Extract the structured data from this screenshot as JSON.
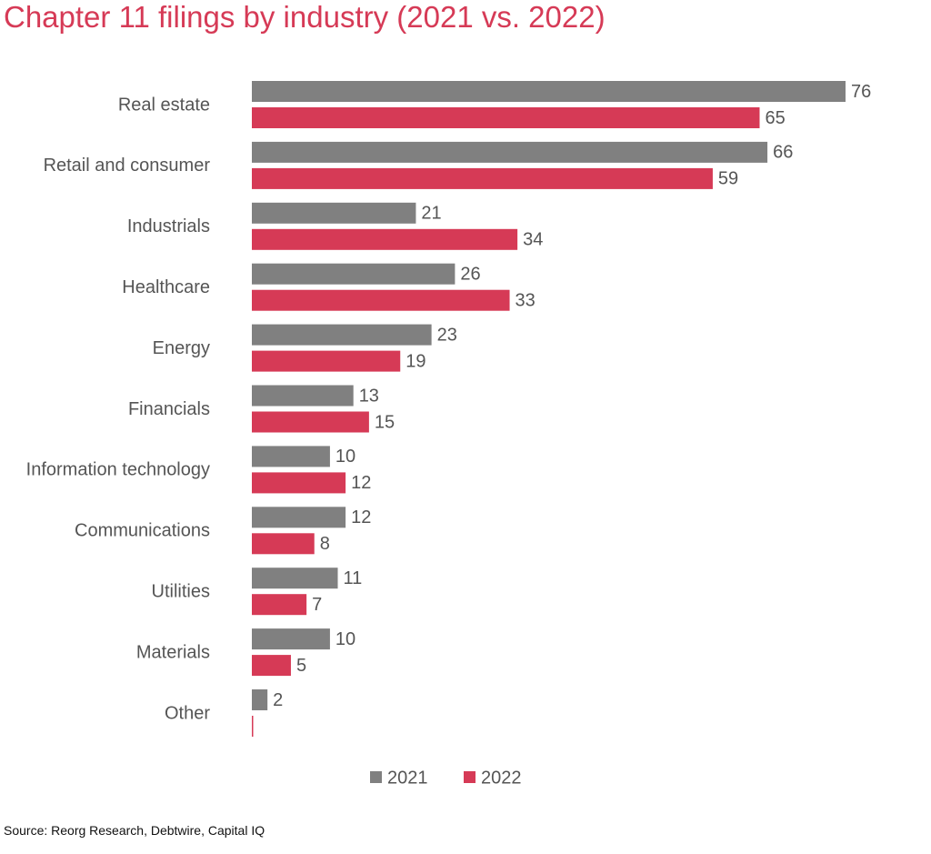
{
  "title": "Chapter 11 filings by industry (2021 vs. 2022)",
  "source": "Source: Reorg Research, Debtwire, Capital IQ",
  "colors": {
    "title": "#d63a56",
    "series_2021": "#808080",
    "series_2022": "#d63a56",
    "text": "#555555"
  },
  "chart_data": {
    "type": "bar",
    "orientation": "horizontal",
    "categories": [
      "Real estate",
      "Retail and consumer",
      "Industrials",
      "Healthcare",
      "Energy",
      "Financials",
      "Information technology",
      "Communications",
      "Utilities",
      "Materials",
      "Other"
    ],
    "series": [
      {
        "name": "2021",
        "color": "#808080",
        "values": [
          76,
          66,
          21,
          26,
          23,
          13,
          10,
          12,
          11,
          10,
          2
        ]
      },
      {
        "name": "2022",
        "color": "#d63a56",
        "values": [
          65,
          59,
          34,
          33,
          19,
          15,
          12,
          8,
          7,
          5,
          0
        ]
      }
    ],
    "data_labels": [
      [
        "76",
        "66",
        "21",
        "26",
        "23",
        "13",
        "10",
        "12",
        "11",
        "10",
        "2"
      ],
      [
        "65",
        "59",
        "34",
        "33",
        "19",
        "15",
        "12",
        "8",
        "7",
        "5",
        ""
      ]
    ],
    "xlim": [
      0,
      76
    ],
    "grid": false,
    "legend": "bottom-center",
    "title": "Chapter 11 filings by industry (2021 vs. 2022)",
    "xlabel": "",
    "ylabel": ""
  }
}
